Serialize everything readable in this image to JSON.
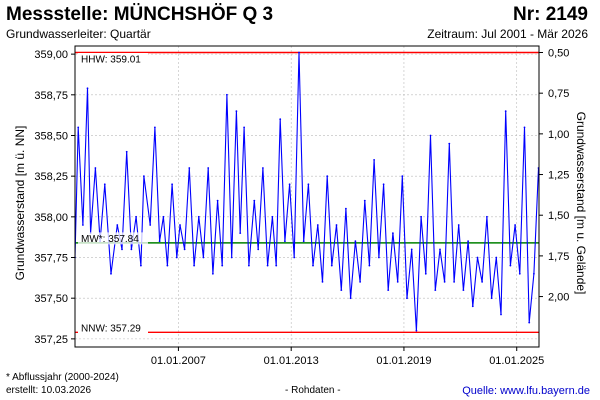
{
  "header": {
    "title": "Messstelle: MÜNCHSHÖF Q 3",
    "station_number": "Nr: 2149",
    "aquifer": "Grundwasserleiter: Quartär",
    "period": "Zeitraum: Jul 2001 - Mär 2026"
  },
  "footer": {
    "footnote": "* Abflussjahr (2000-2024)",
    "created": "erstellt:  10.03.2026",
    "raw_data": "- Rohdaten -",
    "source": "Quelle: www.lfu.bayern.de"
  },
  "colors": {
    "series": "#0000ff",
    "extreme_lines": "#ff0000",
    "mean_line": "#008000",
    "grid": "#bbbbbb"
  },
  "chart_data": {
    "type": "line",
    "xlabel": "",
    "ylabel": "Grundwasserstand [m ü. NN]",
    "ylabel_right": "Grundwasserstand [m u. Gelände]",
    "xlim": [
      "2001-07-01",
      "2026-03-10"
    ],
    "ylim": [
      357.2,
      359.05
    ],
    "x_ticks": [
      "01.01.2007",
      "01.01.2013",
      "01.01.2019",
      "01.01.2025"
    ],
    "y_ticks": [
      357.25,
      357.5,
      357.75,
      358.0,
      358.25,
      358.5,
      358.75,
      359.0
    ],
    "y_tick_labels": [
      "357,25",
      "357,50",
      "357,75",
      "358,00",
      "358,25",
      "358,50",
      "358,75",
      "359,00"
    ],
    "y_right_ticks": [
      0.5,
      0.75,
      1.0,
      1.25,
      1.5,
      1.75,
      2.0
    ],
    "y_right_tick_labels": [
      "0,50",
      "0,75",
      "1,00",
      "1,25",
      "1,50",
      "1,75",
      "2,00"
    ],
    "reference_lines": [
      {
        "label": "HHW: 359.01",
        "value": 359.01,
        "kind": "max"
      },
      {
        "label": "MW*: 357.84",
        "value": 357.84,
        "kind": "mean"
      },
      {
        "label": "NNW: 357.29",
        "value": 357.29,
        "kind": "min"
      }
    ],
    "series": [
      {
        "x": [
          "2001-07-01",
          "2001-09-01",
          "2001-12-01",
          "2002-03-01",
          "2002-05-01",
          "2002-08-01",
          "2002-11-01",
          "2003-02-01",
          "2003-06-01",
          "2003-10-01",
          "2004-01-01",
          "2004-04-01",
          "2004-07-01",
          "2004-10-01",
          "2005-01-01",
          "2005-03-01",
          "2005-07-01",
          "2005-10-01",
          "2006-01-01",
          "2006-03-15",
          "2006-06-01",
          "2006-09-01",
          "2006-12-01",
          "2007-02-01",
          "2007-05-01",
          "2007-08-01",
          "2007-11-01",
          "2008-02-01",
          "2008-05-01",
          "2008-08-01",
          "2008-11-01",
          "2009-02-01",
          "2009-05-01",
          "2009-08-01",
          "2009-11-01",
          "2010-02-01",
          "2010-04-15",
          "2010-07-01",
          "2010-10-01",
          "2011-01-15",
          "2011-04-01",
          "2011-07-01",
          "2011-10-01",
          "2012-01-01",
          "2012-03-15",
          "2012-06-01",
          "2012-09-01",
          "2012-12-01",
          "2013-03-01",
          "2013-06-01",
          "2013-09-01",
          "2013-12-01",
          "2014-03-01",
          "2014-06-01",
          "2014-09-01",
          "2014-12-01",
          "2015-03-01",
          "2015-06-01",
          "2015-09-01",
          "2015-12-01",
          "2016-03-01",
          "2016-06-01",
          "2016-09-01",
          "2016-12-01",
          "2017-03-01",
          "2017-06-01",
          "2017-09-01",
          "2017-12-01",
          "2018-03-01",
          "2018-06-01",
          "2018-09-01",
          "2018-12-01",
          "2019-03-01",
          "2019-06-01",
          "2019-09-01",
          "2019-12-01",
          "2020-03-01",
          "2020-06-01",
          "2020-09-01",
          "2020-12-01",
          "2021-03-01",
          "2021-06-01",
          "2021-09-01",
          "2021-12-01",
          "2022-03-01",
          "2022-06-01",
          "2022-09-01",
          "2022-12-01",
          "2023-03-01",
          "2023-06-01",
          "2023-09-01",
          "2023-12-01",
          "2024-03-01",
          "2024-06-01",
          "2024-09-01",
          "2024-12-01",
          "2025-03-01",
          "2025-06-01",
          "2025-09-01",
          "2025-12-01",
          "2026-03-01"
        ],
        "y": [
          357.75,
          358.55,
          357.95,
          358.79,
          357.9,
          358.3,
          357.85,
          358.2,
          357.65,
          357.95,
          357.8,
          358.4,
          357.8,
          358.0,
          357.7,
          358.25,
          357.95,
          358.55,
          357.85,
          358.0,
          357.7,
          358.2,
          357.75,
          357.95,
          357.8,
          358.3,
          357.7,
          358.0,
          357.75,
          358.3,
          357.65,
          358.1,
          357.7,
          358.75,
          357.75,
          358.65,
          357.9,
          358.55,
          357.7,
          358.1,
          357.8,
          358.3,
          357.7,
          358.0,
          357.7,
          358.6,
          357.85,
          358.2,
          357.75,
          359.01,
          357.85,
          358.2,
          357.7,
          357.95,
          357.6,
          358.25,
          357.7,
          357.95,
          357.55,
          358.05,
          357.5,
          357.85,
          357.6,
          358.1,
          357.7,
          358.35,
          357.75,
          358.2,
          357.55,
          357.9,
          357.6,
          358.25,
          357.5,
          357.8,
          357.3,
          358.0,
          357.65,
          358.5,
          357.55,
          357.8,
          357.6,
          358.45,
          357.6,
          357.95,
          357.55,
          357.85,
          357.45,
          357.75,
          357.6,
          358.0,
          357.5,
          357.75,
          357.4,
          358.65,
          357.7,
          357.95,
          357.65,
          358.55,
          357.35,
          357.65,
          358.3
        ]
      }
    ]
  }
}
